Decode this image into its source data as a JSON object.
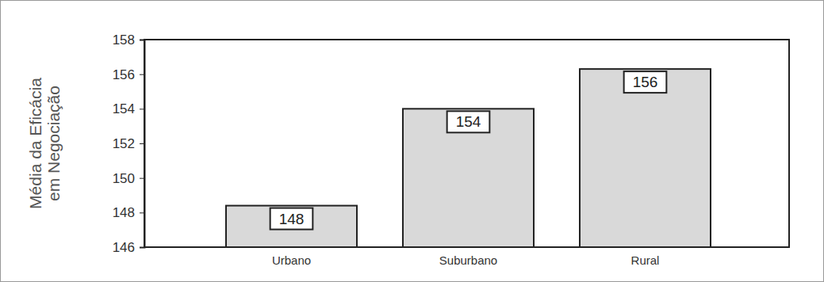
{
  "chart_data": {
    "type": "bar",
    "y_label": "Média da Eficácia\nem Negociação",
    "categories": [
      "Urbano",
      "Suburbano",
      "Rural"
    ],
    "values": [
      148.4,
      154,
      156.3
    ],
    "value_labels": [
      "148",
      "154",
      "156"
    ],
    "data_labels": true,
    "color": "#d9d9d9",
    "ylim": [
      146,
      158
    ],
    "yticks": [
      146,
      148,
      150,
      152,
      154,
      156,
      158
    ],
    "grid": false
  }
}
